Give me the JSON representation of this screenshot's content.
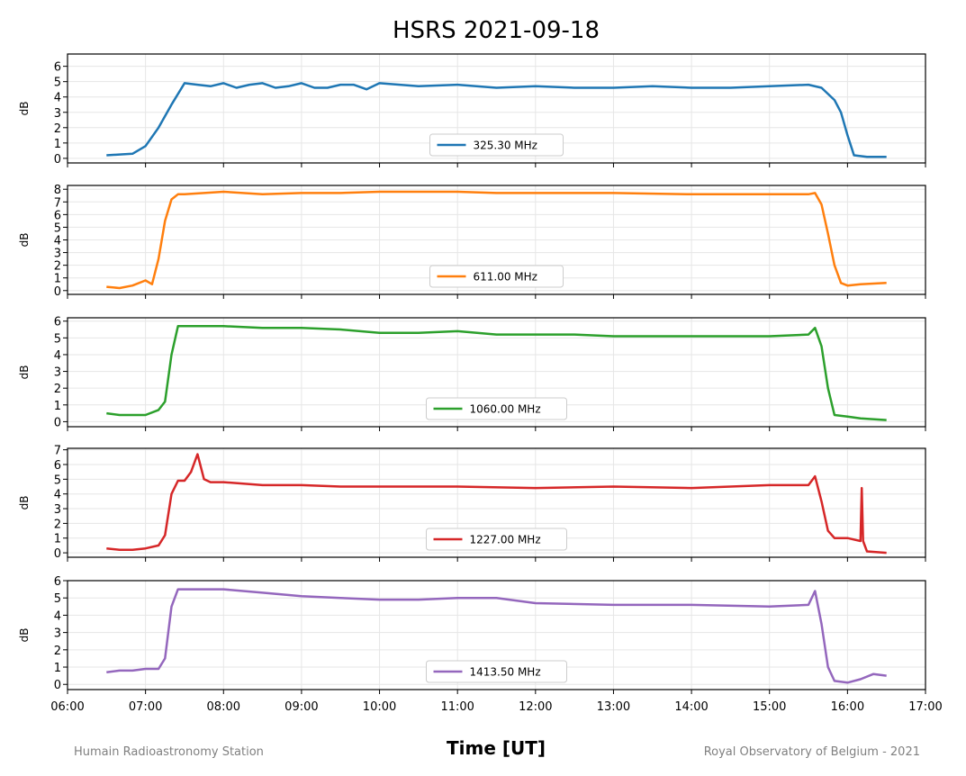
{
  "chart_data": {
    "type": "line",
    "title": "HSRS 2021-09-18",
    "xlabel": "Time [UT]",
    "ylabel": "dB",
    "xlim": [
      "06:00",
      "17:00"
    ],
    "x_ticks": [
      "06:00",
      "07:00",
      "08:00",
      "09:00",
      "10:00",
      "11:00",
      "12:00",
      "13:00",
      "14:00",
      "15:00",
      "16:00",
      "17:00"
    ],
    "grid": true,
    "legend_position": "lower center",
    "credit_left": "Humain Radioastronomy Station",
    "credit_right": "Royal Observatory of Belgium - 2021",
    "series": [
      {
        "name": "325.30 MHz",
        "color": "#1f77b4",
        "ylim": [
          -0.3,
          6.8
        ],
        "y_ticks": [
          "0",
          "1",
          "2",
          "3",
          "4",
          "5",
          "6"
        ],
        "x": [
          "06:30",
          "06:40",
          "06:50",
          "07:00",
          "07:10",
          "07:20",
          "07:30",
          "07:40",
          "07:50",
          "08:00",
          "08:10",
          "08:20",
          "08:30",
          "08:40",
          "08:50",
          "09:00",
          "09:10",
          "09:20",
          "09:30",
          "09:40",
          "09:50",
          "10:00",
          "10:30",
          "11:00",
          "11:30",
          "12:00",
          "12:30",
          "13:00",
          "13:30",
          "14:00",
          "14:30",
          "15:00",
          "15:30",
          "15:40",
          "15:50",
          "15:55",
          "16:00",
          "16:05",
          "16:15",
          "16:30"
        ],
        "y": [
          0.2,
          0.25,
          0.3,
          0.8,
          2.0,
          3.5,
          4.9,
          4.8,
          4.7,
          4.9,
          4.6,
          4.8,
          4.9,
          4.6,
          4.7,
          4.9,
          4.6,
          4.6,
          4.8,
          4.8,
          4.5,
          4.9,
          4.7,
          4.8,
          4.6,
          4.7,
          4.6,
          4.6,
          4.7,
          4.6,
          4.6,
          4.7,
          4.8,
          4.6,
          3.8,
          3.0,
          1.5,
          0.2,
          0.1,
          0.1
        ]
      },
      {
        "name": "611.00 MHz",
        "color": "#ff7f0e",
        "ylim": [
          -0.3,
          8.3
        ],
        "y_ticks": [
          "0",
          "1",
          "2",
          "3",
          "4",
          "5",
          "6",
          "7",
          "8"
        ],
        "x": [
          "06:30",
          "06:40",
          "06:50",
          "07:00",
          "07:05",
          "07:10",
          "07:15",
          "07:20",
          "07:25",
          "07:30",
          "08:00",
          "08:30",
          "09:00",
          "09:30",
          "10:00",
          "10:30",
          "11:00",
          "11:30",
          "12:00",
          "13:00",
          "14:00",
          "15:00",
          "15:30",
          "15:35",
          "15:40",
          "15:45",
          "15:50",
          "15:55",
          "16:00",
          "16:10",
          "16:30"
        ],
        "y": [
          0.3,
          0.2,
          0.4,
          0.8,
          0.5,
          2.5,
          5.5,
          7.2,
          7.6,
          7.6,
          7.8,
          7.6,
          7.7,
          7.7,
          7.8,
          7.8,
          7.8,
          7.7,
          7.7,
          7.7,
          7.6,
          7.6,
          7.6,
          7.7,
          6.8,
          4.5,
          2.0,
          0.6,
          0.4,
          0.5,
          0.6
        ]
      },
      {
        "name": "1060.00 MHz",
        "color": "#2ca02c",
        "ylim": [
          -0.3,
          6.2
        ],
        "y_ticks": [
          "0",
          "1",
          "2",
          "3",
          "4",
          "5",
          "6"
        ],
        "x": [
          "06:30",
          "06:40",
          "06:50",
          "07:00",
          "07:10",
          "07:15",
          "07:20",
          "07:25",
          "07:30",
          "08:00",
          "08:30",
          "09:00",
          "09:30",
          "10:00",
          "10:30",
          "11:00",
          "11:30",
          "12:00",
          "12:30",
          "13:00",
          "14:00",
          "15:00",
          "15:30",
          "15:35",
          "15:40",
          "15:45",
          "15:50",
          "16:00",
          "16:10",
          "16:30"
        ],
        "y": [
          0.5,
          0.4,
          0.4,
          0.4,
          0.7,
          1.2,
          4.0,
          5.7,
          5.7,
          5.7,
          5.6,
          5.6,
          5.5,
          5.3,
          5.3,
          5.4,
          5.2,
          5.2,
          5.2,
          5.1,
          5.1,
          5.1,
          5.2,
          5.6,
          4.5,
          2.0,
          0.4,
          0.3,
          0.2,
          0.1
        ]
      },
      {
        "name": "1227.00 MHz",
        "color": "#d62728",
        "ylim": [
          -0.3,
          7.1
        ],
        "y_ticks": [
          "0",
          "1",
          "2",
          "3",
          "4",
          "5",
          "6",
          "7"
        ],
        "x": [
          "06:30",
          "06:40",
          "06:50",
          "07:00",
          "07:10",
          "07:15",
          "07:20",
          "07:25",
          "07:30",
          "07:35",
          "07:40",
          "07:45",
          "07:50",
          "08:00",
          "08:30",
          "09:00",
          "09:30",
          "10:00",
          "11:00",
          "12:00",
          "13:00",
          "14:00",
          "15:00",
          "15:30",
          "15:35",
          "15:40",
          "15:45",
          "15:50",
          "16:00",
          "16:10",
          "16:11",
          "16:12",
          "16:15",
          "16:30"
        ],
        "y": [
          0.3,
          0.2,
          0.2,
          0.3,
          0.5,
          1.2,
          4.0,
          4.9,
          4.9,
          5.5,
          6.7,
          5.0,
          4.8,
          4.8,
          4.6,
          4.6,
          4.5,
          4.5,
          4.5,
          4.4,
          4.5,
          4.4,
          4.6,
          4.6,
          5.2,
          3.5,
          1.5,
          1.0,
          1.0,
          0.8,
          4.4,
          0.8,
          0.1,
          0.0
        ]
      },
      {
        "name": "1413.50 MHz",
        "color": "#9467bd",
        "ylim": [
          -0.3,
          6.0
        ],
        "y_ticks": [
          "0",
          "1",
          "2",
          "3",
          "4",
          "5",
          "6"
        ],
        "x": [
          "06:30",
          "06:40",
          "06:50",
          "07:00",
          "07:10",
          "07:15",
          "07:20",
          "07:25",
          "07:30",
          "08:00",
          "08:30",
          "09:00",
          "09:30",
          "10:00",
          "10:30",
          "11:00",
          "11:30",
          "12:00",
          "13:00",
          "14:00",
          "15:00",
          "15:30",
          "15:35",
          "15:40",
          "15:45",
          "15:50",
          "16:00",
          "16:10",
          "16:20",
          "16:30"
        ],
        "y": [
          0.7,
          0.8,
          0.8,
          0.9,
          0.9,
          1.5,
          4.5,
          5.5,
          5.5,
          5.5,
          5.3,
          5.1,
          5.0,
          4.9,
          4.9,
          5.0,
          5.0,
          4.7,
          4.6,
          4.6,
          4.5,
          4.6,
          5.4,
          3.5,
          1.0,
          0.2,
          0.1,
          0.3,
          0.6,
          0.5
        ]
      }
    ]
  }
}
